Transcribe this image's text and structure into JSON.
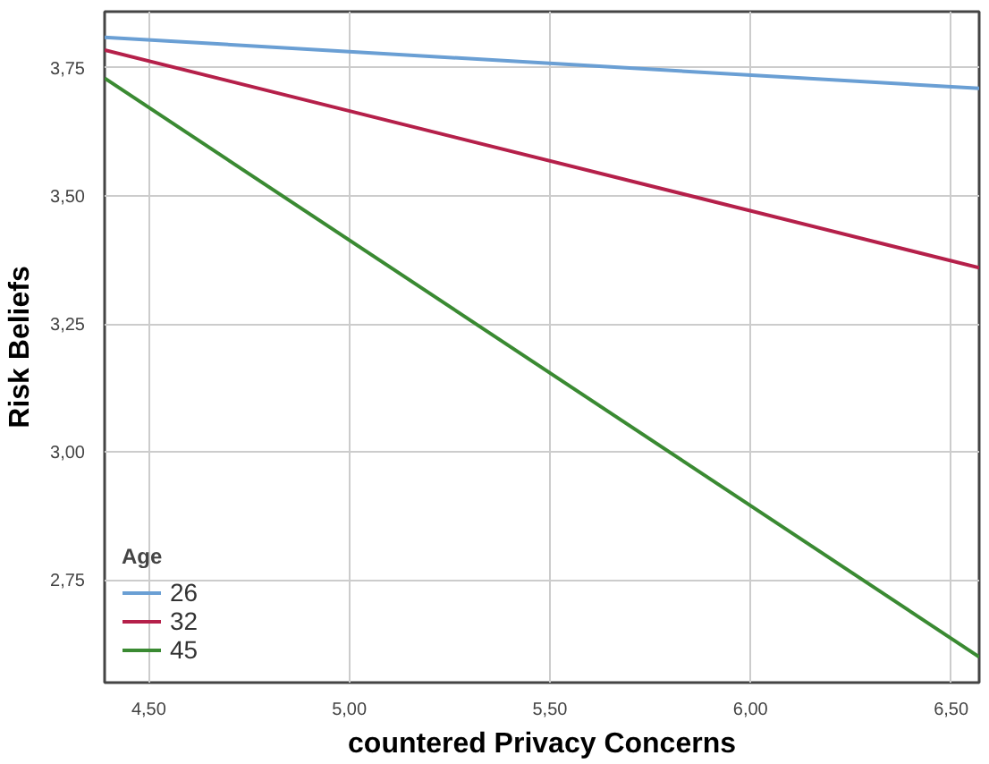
{
  "chart_data": {
    "type": "line",
    "xlabel": "countered Privacy Concerns",
    "ylabel": "Risk Beliefs",
    "legend_title": "Age",
    "legend": "bottom left",
    "grid": true,
    "marker": "none",
    "line_style": "solid",
    "x": [
      4.39,
      6.57
    ],
    "xlim": [
      4.39,
      6.57
    ],
    "ylim": [
      2.55,
      3.86
    ],
    "xticks": [
      {
        "value": 4.5,
        "label": "4,50"
      },
      {
        "value": 5.0,
        "label": "5,00"
      },
      {
        "value": 5.5,
        "label": "5,50"
      },
      {
        "value": 6.0,
        "label": "6,00"
      },
      {
        "value": 6.5,
        "label": "6,50"
      }
    ],
    "yticks": [
      {
        "value": 2.75,
        "label": "2,75"
      },
      {
        "value": 3.0,
        "label": "3,00"
      },
      {
        "value": 3.25,
        "label": "3,25"
      },
      {
        "value": 3.5,
        "label": "3,50"
      },
      {
        "value": 3.75,
        "label": "3,75"
      }
    ],
    "series": [
      {
        "name": "26",
        "color": "#6a9fd4",
        "values": [
          3.81,
          3.71
        ]
      },
      {
        "name": "32",
        "color": "#b5204a",
        "values": [
          3.785,
          3.36
        ]
      },
      {
        "name": "45",
        "color": "#3a8a32",
        "values": [
          3.73,
          2.6
        ]
      }
    ]
  }
}
